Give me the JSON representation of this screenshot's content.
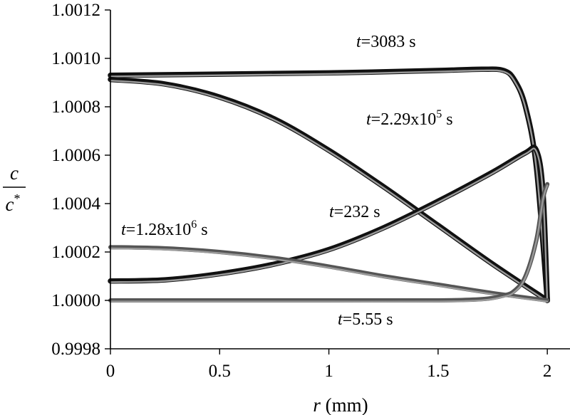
{
  "chart_data": {
    "type": "line",
    "xlabel": {
      "var": "r",
      "unit": " (mm)"
    },
    "ylabel": {
      "numerator": "c",
      "denominator": "c",
      "superscript": "*"
    },
    "xlim": [
      0,
      2.1
    ],
    "ylim": [
      0.9998,
      1.0012
    ],
    "xticks": [
      "0",
      "0.5",
      "1",
      "1.5",
      "2"
    ],
    "xtick_values": [
      0,
      0.5,
      1,
      1.5,
      2
    ],
    "yticks": [
      "0.9998",
      "1.0000",
      "1.0002",
      "1.0004",
      "1.0006",
      "1.0008",
      "1.0010",
      "1.0012"
    ],
    "ytick_values": [
      0.9998,
      1.0,
      1.0002,
      1.0004,
      1.0006,
      1.0008,
      1.001,
      1.0012
    ],
    "grid": false,
    "legend": "none",
    "colors": {
      "dark": "#111111",
      "light": "#9a9a9a",
      "mid": "#555555"
    },
    "series": [
      {
        "label_var": "t",
        "label_value": "=3083 s",
        "x": [
          0,
          0.5,
          1.0,
          1.5,
          1.7,
          1.8,
          1.85,
          1.9,
          1.95,
          2.0
        ],
        "y": [
          1.00093,
          1.000935,
          1.00094,
          1.00095,
          1.000955,
          1.00095,
          1.00091,
          1.0008,
          1.00055,
          1.0
        ],
        "style": "dark"
      },
      {
        "label_var": "t",
        "label_value": "=2.29x10",
        "label_sup": "5",
        "label_tail": " s",
        "x": [
          0,
          0.25,
          0.5,
          0.75,
          1.0,
          1.25,
          1.5,
          1.75,
          2.0
        ],
        "y": [
          1.000913,
          1.000894,
          1.00084,
          1.00075,
          1.00062,
          1.00047,
          1.00031,
          1.00015,
          1.0
        ],
        "style": "dark"
      },
      {
        "label_var": "t",
        "label_value": "=232 s",
        "x": [
          0,
          0.25,
          0.5,
          0.75,
          1.0,
          1.25,
          1.5,
          1.75,
          1.9,
          1.95,
          1.98,
          2.0
        ],
        "y": [
          1.00008,
          1.000085,
          1.00011,
          1.00015,
          1.00021,
          1.0003,
          1.00041,
          1.00053,
          1.00061,
          1.00062,
          1.00045,
          1.0
        ],
        "style": "dark"
      },
      {
        "label_var": "t",
        "label_value": "=1.28x10",
        "label_sup": "6",
        "label_tail": " s",
        "x": [
          0,
          0.25,
          0.5,
          0.75,
          1.0,
          1.25,
          1.5,
          1.75,
          2.0
        ],
        "y": [
          1.00022,
          1.000215,
          1.0002,
          1.000175,
          1.00014,
          1.0001,
          1.000065,
          1.00003,
          1.0
        ],
        "style": "mid"
      },
      {
        "label_var": "t",
        "label_value": "=5.55 s",
        "x": [
          0,
          0.5,
          1.0,
          1.5,
          1.7,
          1.8,
          1.85,
          1.9,
          1.95,
          1.98,
          2.0
        ],
        "y": [
          1.0,
          1.0,
          1.0,
          1.0,
          1.000005,
          1.00002,
          1.00004,
          1.0001,
          1.00025,
          1.00042,
          1.00048
        ],
        "style": "mid"
      }
    ]
  }
}
